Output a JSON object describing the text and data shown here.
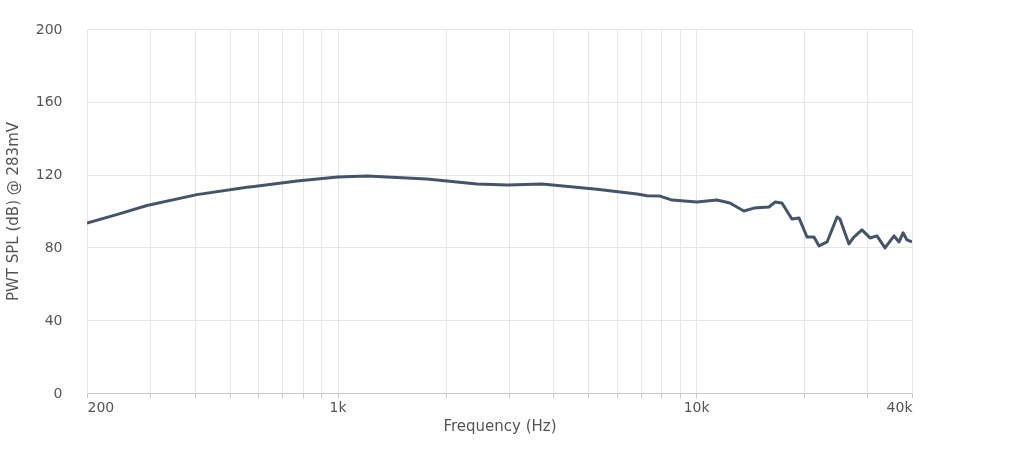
{
  "chart_data": {
    "type": "line",
    "xlabel": "Frequency (Hz)",
    "ylabel": "PWT SPL (dB) @ 283mV",
    "log": "x",
    "grid": true,
    "marker": "none",
    "line_style": "solid",
    "xlim": [
      200,
      40000
    ],
    "ylim": [
      0,
      200
    ],
    "xticks": [
      200,
      {
        "value": 300,
        "label": null
      },
      {
        "value": 400,
        "label": null
      },
      {
        "value": 500,
        "label": null
      },
      {
        "value": 600,
        "label": null
      },
      {
        "value": 700,
        "label": null
      },
      {
        "value": 800,
        "label": null
      },
      {
        "value": 900,
        "label": null
      },
      {
        "value": 1000,
        "label": "1k"
      },
      {
        "value": 2000,
        "label": null
      },
      {
        "value": 3000,
        "label": null
      },
      {
        "value": 4000,
        "label": null
      },
      {
        "value": 5000,
        "label": null
      },
      {
        "value": 6000,
        "label": null
      },
      {
        "value": 7000,
        "label": null
      },
      {
        "value": 8000,
        "label": null
      },
      {
        "value": 9000,
        "label": null
      },
      {
        "value": 10000,
        "label": "10k"
      },
      {
        "value": 20000,
        "label": null
      },
      {
        "value": 30000,
        "label": null
      },
      {
        "value": 40000,
        "label": "40k"
      }
    ],
    "yticks": [
      0,
      40,
      80,
      120,
      160,
      200
    ],
    "series": [
      {
        "color": "#44546a",
        "x": [
          200,
          242,
          294,
          405,
          559,
          771,
          1000,
          1208,
          1774,
          2448,
          2966,
          3716,
          5287,
          6839,
          7297,
          7927,
          8570,
          10050,
          11430,
          12420,
          13590,
          14500,
          15960,
          16590,
          17350,
          18500,
          19360,
          20380,
          21310,
          22020,
          23180,
          24720,
          25180,
          26680,
          27540,
          29000,
          30550,
          31930,
          33640,
          35640,
          36810,
          37760,
          38730,
          40000
        ],
        "values": [
          93.4,
          98,
          103,
          109,
          113,
          116.5,
          118.7,
          119.2,
          117.6,
          114.8,
          114.3,
          114.8,
          112,
          109.3,
          108.4,
          108.2,
          106,
          104.9,
          106,
          104.4,
          100,
          101.6,
          102.2,
          104.9,
          104.4,
          95.6,
          96.2,
          85.7,
          85.7,
          80.8,
          83,
          96.7,
          95.6,
          81.9,
          85.7,
          89.6,
          85.2,
          86.3,
          79.7,
          86.3,
          83,
          88,
          84.1,
          83
        ]
      }
    ]
  }
}
